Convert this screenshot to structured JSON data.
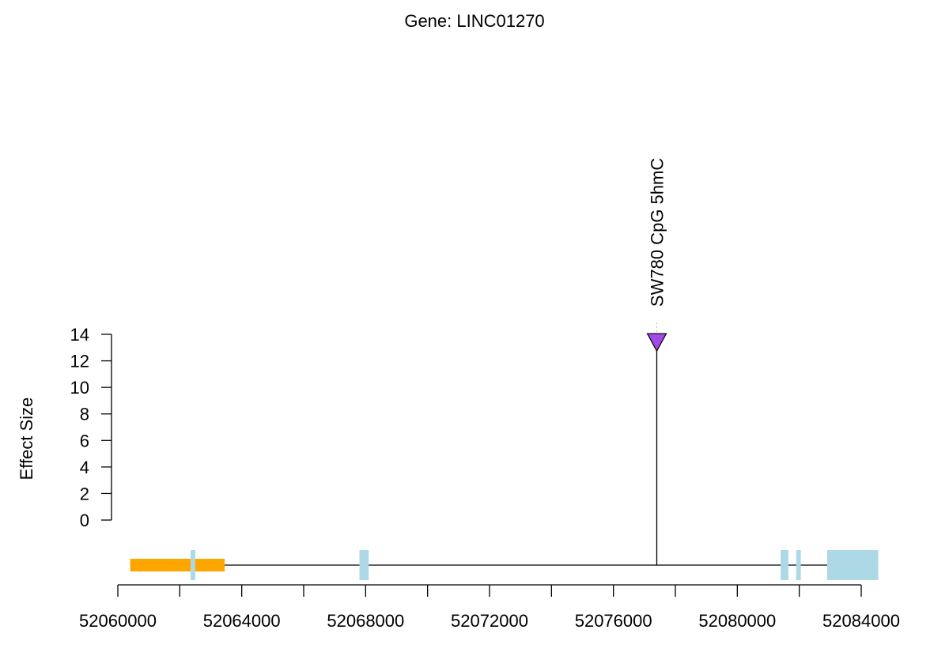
{
  "chart_data": {
    "type": "lollipop",
    "title": "Gene: LINC01270",
    "xlabel": "",
    "ylabel": "Effect Size",
    "xlim": [
      52060000,
      52084000
    ],
    "ylim": [
      0,
      14
    ],
    "x_ticks": [
      52060000,
      52064000,
      52068000,
      52072000,
      52076000,
      52080000,
      52084000
    ],
    "x_tick_labels": [
      "52060000",
      "52064000",
      "52068000",
      "52072000",
      "52076000",
      "52080000",
      "52084000"
    ],
    "x_minor_ticks": [
      52062000,
      52066000,
      52070000,
      52074000,
      52078000,
      52082000
    ],
    "y_ticks": [
      0,
      2,
      4,
      6,
      8,
      10,
      12,
      14
    ],
    "y_tick_labels": [
      "0",
      "2",
      "4",
      "6",
      "8",
      "10",
      "12",
      "14"
    ],
    "points": [
      {
        "x": 52077400,
        "y": 13.4,
        "label": "SW780 CpG 5hmC",
        "color": "#A349E5",
        "marker": "triangle-down"
      }
    ],
    "gene_track": {
      "start": 52060400,
      "end": 52084550,
      "line_color": "#000000",
      "features": [
        {
          "start": 52060400,
          "end": 52063450,
          "type": "utr",
          "color": "#FFA500"
        },
        {
          "start": 52062350,
          "end": 52062500,
          "type": "exon",
          "color": "#ADD8E6"
        },
        {
          "start": 52067800,
          "end": 52068100,
          "type": "exon",
          "color": "#ADD8E6"
        },
        {
          "start": 52081400,
          "end": 52081650,
          "type": "exon",
          "color": "#ADD8E6"
        },
        {
          "start": 52081900,
          "end": 52082050,
          "type": "exon",
          "color": "#ADD8E6"
        },
        {
          "start": 52082900,
          "end": 52084550,
          "type": "exon",
          "color": "#ADD8E6"
        }
      ]
    },
    "grid": false,
    "legend": "none"
  }
}
